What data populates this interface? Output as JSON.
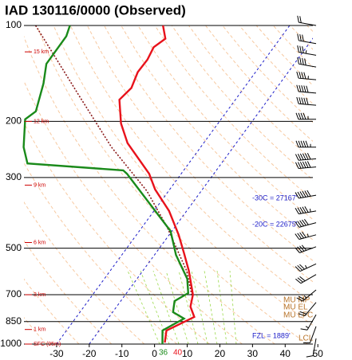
{
  "chart_data": {
    "type": "skewt",
    "title": "IAD   130116/0000  (Observed)",
    "ylim": [
      1000,
      100
    ],
    "yticks": [
      100,
      200,
      300,
      500,
      700,
      850,
      1000
    ],
    "xlim": [
      -40,
      48
    ],
    "xticks": [
      -30,
      -20,
      -10,
      0,
      10,
      20,
      30,
      40,
      50
    ],
    "series": [
      {
        "color": "#e8121b",
        "pressure": [
          100,
          110,
          117,
          128,
          140,
          157,
          171,
          203,
          234,
          292,
          327,
          382,
          454,
          519,
          589,
          700,
          763,
          822,
          907,
          989
        ],
        "values": [
          -68.8,
          -65.1,
          -66.8,
          -65.9,
          -66.1,
          -64.5,
          -65.5,
          -59.7,
          -53.3,
          -39.8,
          -34.5,
          -25.4,
          -17.1,
          -11.3,
          -5.9,
          0.7,
          2.6,
          6.1,
          0.6,
          2.8
        ]
      },
      {
        "color": "#1a8a1a",
        "pressure": [
          100,
          108,
          132,
          152,
          186,
          197,
          241,
          271,
          285,
          292,
          442,
          525,
          624,
          692,
          733,
          794,
          832,
          907,
          1000
        ],
        "values": [
          -97.3,
          -96,
          -95.9,
          -92.4,
          -88.5,
          -90,
          -84.2,
          -79.4,
          -48.5,
          -46.6,
          -20.4,
          -13.4,
          -4.6,
          -1.1,
          -3.5,
          -1.5,
          3.3,
          -0.6,
          2.4
        ]
      },
      {
        "color": "#8b1a1a",
        "pressure": [
          100,
          166,
          241,
          331,
          429,
          589,
          708
        ],
        "values": [
          -107.8,
          -78.8,
          -57.3,
          -36.6,
          -22.4,
          -6.6,
          0.8
        ]
      }
    ],
    "isotherms": [
      -30,
      -20
    ],
    "height_labels": [
      {
        "label": "15 km",
        "pressure": 121
      },
      {
        "label": "12 km",
        "pressure": 200
      },
      {
        "label": "9 km",
        "pressure": 317
      },
      {
        "label": "6 km",
        "pressure": 480
      },
      {
        "label": "3 km",
        "pressure": 700
      },
      {
        "label": "1 km",
        "pressure": 900
      },
      {
        "label": "SFC (95m)",
        "pressure": 1000
      }
    ],
    "annotations": [
      "-30C = 27167'",
      "-20C = 22675'",
      "MU MP",
      "MU EL",
      "MU LFC",
      "LCL",
      "FZL = 1889'",
      "36",
      "40"
    ],
    "wind_barbs": {
      "pressure": [
        100,
        114,
        124,
        135,
        148,
        163,
        178,
        197,
        241,
        262,
        278,
        341,
        382,
        416,
        454,
        495,
        560,
        605,
        676,
        740,
        809,
        880,
        960
      ],
      "speed": [
        20,
        30,
        35,
        40,
        45,
        50,
        50,
        45,
        55,
        60,
        60,
        60,
        55,
        50,
        45,
        40,
        35,
        30,
        25,
        20,
        15,
        10,
        10
      ],
      "direction": [
        280,
        280,
        280,
        280,
        275,
        275,
        275,
        270,
        270,
        265,
        265,
        260,
        260,
        255,
        255,
        250,
        245,
        240,
        230,
        220,
        210,
        200,
        190
      ]
    }
  }
}
